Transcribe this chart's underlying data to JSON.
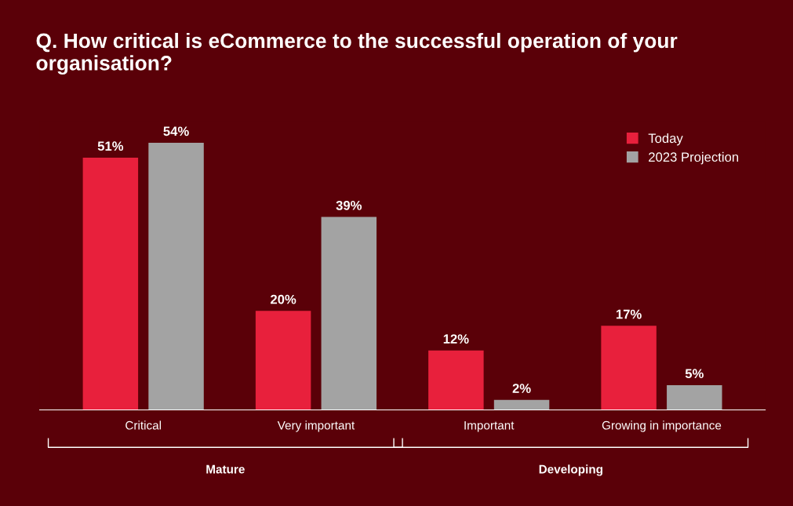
{
  "chart_data": {
    "type": "bar",
    "title": "Q. How critical is eCommerce to the successful operation of your organisation?",
    "categories": [
      "Critical",
      "Very important",
      "Important",
      "Growing in importance"
    ],
    "series": [
      {
        "name": "Today",
        "color": "#e8203c",
        "values": [
          51,
          20,
          12,
          17
        ],
        "value_labels": [
          "51%",
          "20%",
          "12%",
          "17%"
        ]
      },
      {
        "name": "2023 Projection",
        "color": "#a3a3a3",
        "values": [
          54,
          39,
          2,
          5
        ],
        "value_labels": [
          "54%",
          "39%",
          "2%",
          "5%"
        ]
      }
    ],
    "legend": "top right",
    "grid": false,
    "annotations": [
      "Mature",
      "Developing"
    ]
  }
}
